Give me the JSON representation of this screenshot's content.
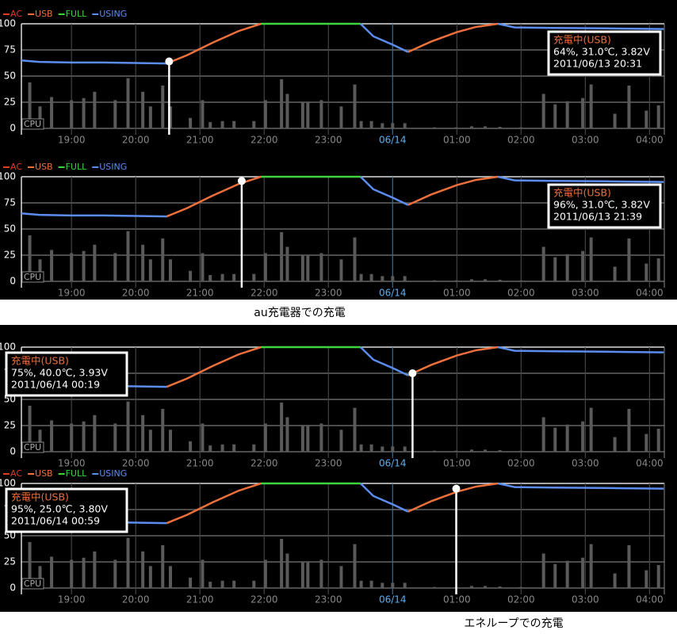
{
  "shared": {
    "xlim": [
      18.22,
      28.23
    ],
    "xticks": [
      {
        "value": 19,
        "label": "19:00"
      },
      {
        "value": 20,
        "label": "20:00"
      },
      {
        "value": 21,
        "label": "21:00"
      },
      {
        "value": 22,
        "label": "22:00"
      },
      {
        "value": 23,
        "label": "23:00"
      },
      {
        "value": 24,
        "label": "06/14"
      },
      {
        "value": 25,
        "label": "01:00"
      },
      {
        "value": 26,
        "label": "02:00"
      },
      {
        "value": 27,
        "label": "03:00"
      },
      {
        "value": 28,
        "label": "04:00"
      }
    ],
    "highlight_tick": 5,
    "ylim": [
      0,
      100
    ],
    "yticks": [
      0,
      25,
      50,
      75,
      100
    ],
    "grid": true,
    "x": [
      18.22,
      18.5,
      19,
      19.5,
      20,
      20.48,
      20.8,
      21.2,
      21.6,
      21.95,
      23.5,
      23.7,
      24.0,
      24.24,
      24.6,
      25.0,
      25.3,
      25.64,
      25.9,
      26.5,
      27.5,
      28.22
    ],
    "series": [
      {
        "name": "AC",
        "color": "#e03c1e",
        "values": [
          null,
          null,
          null,
          null,
          null,
          null,
          null,
          null,
          null,
          null,
          null,
          null,
          null,
          null,
          null,
          null,
          null,
          null,
          null,
          null,
          null,
          null
        ]
      },
      {
        "name": "USB",
        "color": "#ec6f3c",
        "values": [
          null,
          null,
          null,
          null,
          null,
          62,
          70,
          82,
          93,
          100,
          null,
          null,
          null,
          73,
          83,
          92,
          97,
          100,
          null,
          null,
          null,
          null
        ]
      },
      {
        "name": "FULL",
        "color": "#3ed43e",
        "values": [
          null,
          null,
          null,
          null,
          null,
          null,
          null,
          null,
          null,
          100,
          100,
          null,
          null,
          null,
          null,
          null,
          null,
          null,
          null,
          null,
          null,
          null
        ]
      },
      {
        "name": "USING",
        "color": "#5b8def",
        "values": [
          65,
          63.5,
          63,
          63,
          62.5,
          62,
          null,
          null,
          null,
          null,
          100,
          88,
          80,
          73,
          null,
          null,
          null,
          100,
          96.5,
          96,
          95.5,
          95
        ]
      }
    ],
    "cpu": {
      "name": "CPU",
      "color": "#5a5a5a",
      "x": [
        18.35,
        18.51,
        18.69,
        19.0,
        19.19,
        19.36,
        19.68,
        19.88,
        20.11,
        20.23,
        20.42,
        20.54,
        20.85,
        21.04,
        21.16,
        21.35,
        21.53,
        21.84,
        22.02,
        22.27,
        22.36,
        22.6,
        22.68,
        22.89,
        23.2,
        23.41,
        23.51,
        23.67,
        23.84,
        24.0,
        24.19,
        24.65,
        24.99,
        25.23,
        25.44,
        25.67,
        26.0,
        26.35,
        26.53,
        26.72,
        26.96,
        27.09,
        27.46,
        27.68,
        27.95,
        28.14
      ],
      "values": [
        44,
        21,
        30,
        27,
        29,
        35,
        27,
        48,
        35,
        21,
        41,
        21,
        10,
        27,
        6,
        7,
        7,
        7,
        27,
        47,
        33,
        25,
        25,
        27,
        21,
        42,
        7,
        7,
        5,
        5,
        5,
        1,
        1,
        2,
        2,
        1.5,
        1,
        33,
        23,
        26,
        29,
        42,
        14,
        41,
        17,
        22
      ]
    }
  },
  "chart_data": [
    {
      "type": "line",
      "legend": true,
      "cursor": {
        "x": 20.52,
        "value": 64
      },
      "tooltip_corner": "top-right",
      "tooltip": [
        "充電中(USB)",
        "64%, 31.0℃, 3.82V",
        "2011/06/13 20:31"
      ]
    },
    {
      "type": "line",
      "legend": true,
      "cursor": {
        "x": 21.65,
        "value": 96
      },
      "tooltip_corner": "top-right",
      "tooltip": [
        "充電中(USB)",
        "96%, 31.0℃, 3.82V",
        "2011/06/13 21:39"
      ]
    },
    {
      "type": "line",
      "legend": false,
      "cursor": {
        "x": 24.31,
        "value": 75
      },
      "tooltip_corner": "top-left",
      "tooltip": [
        "充電中(USB)",
        "75%, 40.0℃, 3.93V",
        "2011/06/14 00:19"
      ]
    },
    {
      "type": "line",
      "legend": true,
      "cursor": {
        "x": 24.99,
        "value": 95
      },
      "tooltip_corner": "top-left",
      "tooltip": [
        "充電中(USB)",
        "95%, 25.0℃, 3.80V",
        "2011/06/14 00:59"
      ]
    }
  ],
  "captions": [
    "au充電器での充電",
    "エネループでの充電"
  ]
}
